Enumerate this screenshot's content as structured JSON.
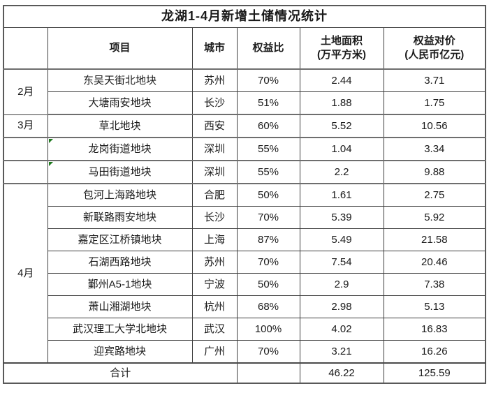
{
  "table": {
    "title": "龙湖1-4月新增土储情况统计",
    "headers": {
      "month": "",
      "project": "项目",
      "city": "城市",
      "equity_ratio": "权益比",
      "land_area_line1": "土地面积",
      "land_area_line2": "(万平方米)",
      "consideration_line1": "权益对价",
      "consideration_line2": "(人民币亿元)"
    },
    "rows": [
      {
        "month": "2月",
        "project": "东吴天街北地块",
        "city": "苏州",
        "equity_ratio": "70%",
        "land_area": "2.44",
        "consideration": "3.71"
      },
      {
        "month": "",
        "project": "大塘雨安地块",
        "city": "长沙",
        "equity_ratio": "51%",
        "land_area": "1.88",
        "consideration": "1.75"
      },
      {
        "month": "3月",
        "project": "草北地块",
        "city": "西安",
        "equity_ratio": "60%",
        "land_area": "5.52",
        "consideration": "10.56"
      },
      {
        "month": "",
        "project": "龙岗街道地块",
        "city": "深圳",
        "equity_ratio": "55%",
        "land_area": "1.04",
        "consideration": "3.34"
      },
      {
        "month": "",
        "project": "马田街道地块",
        "city": "深圳",
        "equity_ratio": "55%",
        "land_area": "2.2",
        "consideration": "9.88"
      },
      {
        "month": "4月",
        "project": "包河上海路地块",
        "city": "合肥",
        "equity_ratio": "50%",
        "land_area": "1.61",
        "consideration": "2.75"
      },
      {
        "month": "",
        "project": "新联路雨安地块",
        "city": "长沙",
        "equity_ratio": "70%",
        "land_area": "5.39",
        "consideration": "5.92"
      },
      {
        "month": "",
        "project": "嘉定区江桥镇地块",
        "city": "上海",
        "equity_ratio": "87%",
        "land_area": "5.49",
        "consideration": "21.58"
      },
      {
        "month": "",
        "project": "石湖西路地块",
        "city": "苏州",
        "equity_ratio": "70%",
        "land_area": "7.54",
        "consideration": "20.46"
      },
      {
        "month": "",
        "project": "鄞州A5-1地块",
        "city": "宁波",
        "equity_ratio": "50%",
        "land_area": "2.9",
        "consideration": "7.38"
      },
      {
        "month": "",
        "project": "萧山湘湖地块",
        "city": "杭州",
        "equity_ratio": "68%",
        "land_area": "2.98",
        "consideration": "5.13"
      },
      {
        "month": "",
        "project": "武汉理工大学北地块",
        "city": "武汉",
        "equity_ratio": "100%",
        "land_area": "4.02",
        "consideration": "16.83"
      },
      {
        "month": "",
        "project": "迎宾路地块",
        "city": "广州",
        "equity_ratio": "70%",
        "land_area": "3.21",
        "consideration": "16.26"
      }
    ],
    "total": {
      "label": "合计",
      "equity_ratio": "",
      "land_area": "46.22",
      "consideration": "125.59"
    }
  },
  "icons": {
    "error_indicator": "excel-error-indicator-triangle"
  },
  "colors": {
    "background": "#ffffff",
    "text": "#1a1a1a",
    "border_thin": "#3d3d3d",
    "border_thick": "#6e6e6e",
    "outer_border": "#595959",
    "indicator_green": "#1f7a1f"
  }
}
